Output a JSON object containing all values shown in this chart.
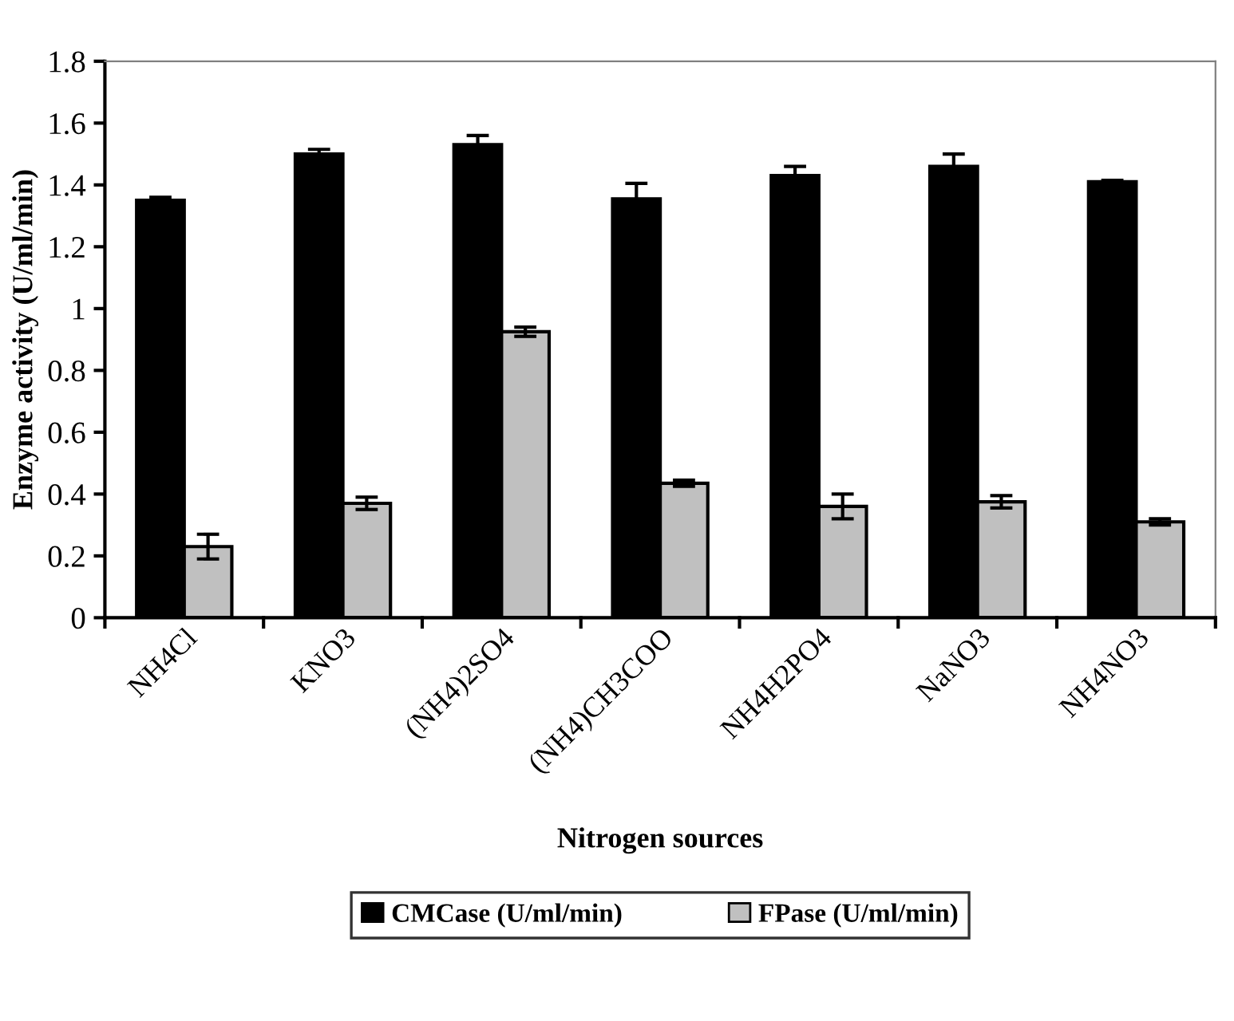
{
  "chart_data": {
    "type": "bar",
    "xlabel": "Nitrogen sources",
    "ylabel": "Enzyme activity (U/ml/min)",
    "categories": [
      "NH4Cl",
      "KNO3",
      "(NH4)2SO4",
      "(NH4)CH3COO",
      "NH4H2PO4",
      "NaNO3",
      "NH4NO3"
    ],
    "series": [
      {
        "name": "CMCase (U/ml/min)",
        "color": "#000000",
        "values": [
          1.35,
          1.5,
          1.53,
          1.355,
          1.43,
          1.46,
          1.41
        ],
        "errors": [
          0.01,
          0.015,
          0.03,
          0.05,
          0.03,
          0.04,
          0.005
        ]
      },
      {
        "name": "FPase (U/ml/min)",
        "color": "#c0c0c0",
        "values": [
          0.23,
          0.37,
          0.925,
          0.435,
          0.36,
          0.375,
          0.31
        ],
        "errors": [
          0.04,
          0.02,
          0.015,
          0.01,
          0.04,
          0.02,
          0.01
        ]
      }
    ],
    "ylim": [
      0,
      1.8
    ],
    "yticks": [
      {
        "value": 0,
        "label": "0"
      },
      0.2,
      0.4,
      0.6,
      0.8,
      {
        "value": 1,
        "label": "1"
      },
      1.2,
      1.4,
      1.6,
      1.8
    ],
    "grid": false,
    "legend": "bottom"
  }
}
